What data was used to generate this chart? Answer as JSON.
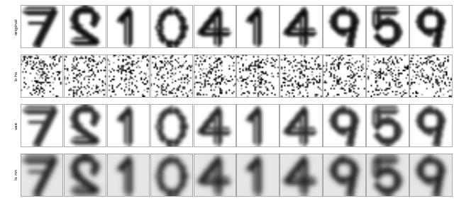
{
  "digits": [
    7,
    2,
    1,
    0,
    4,
    1,
    4,
    9,
    5,
    9
  ],
  "row_labels": [
    "original",
    "b hs",
    "vae",
    "ls nn"
  ],
  "n_cols": 10,
  "n_rows": 4,
  "fig_width": 6.4,
  "fig_height": 2.84,
  "img_size": 28,
  "border_color": "#888888",
  "background": "#ffffff",
  "noise_density": 0.15
}
